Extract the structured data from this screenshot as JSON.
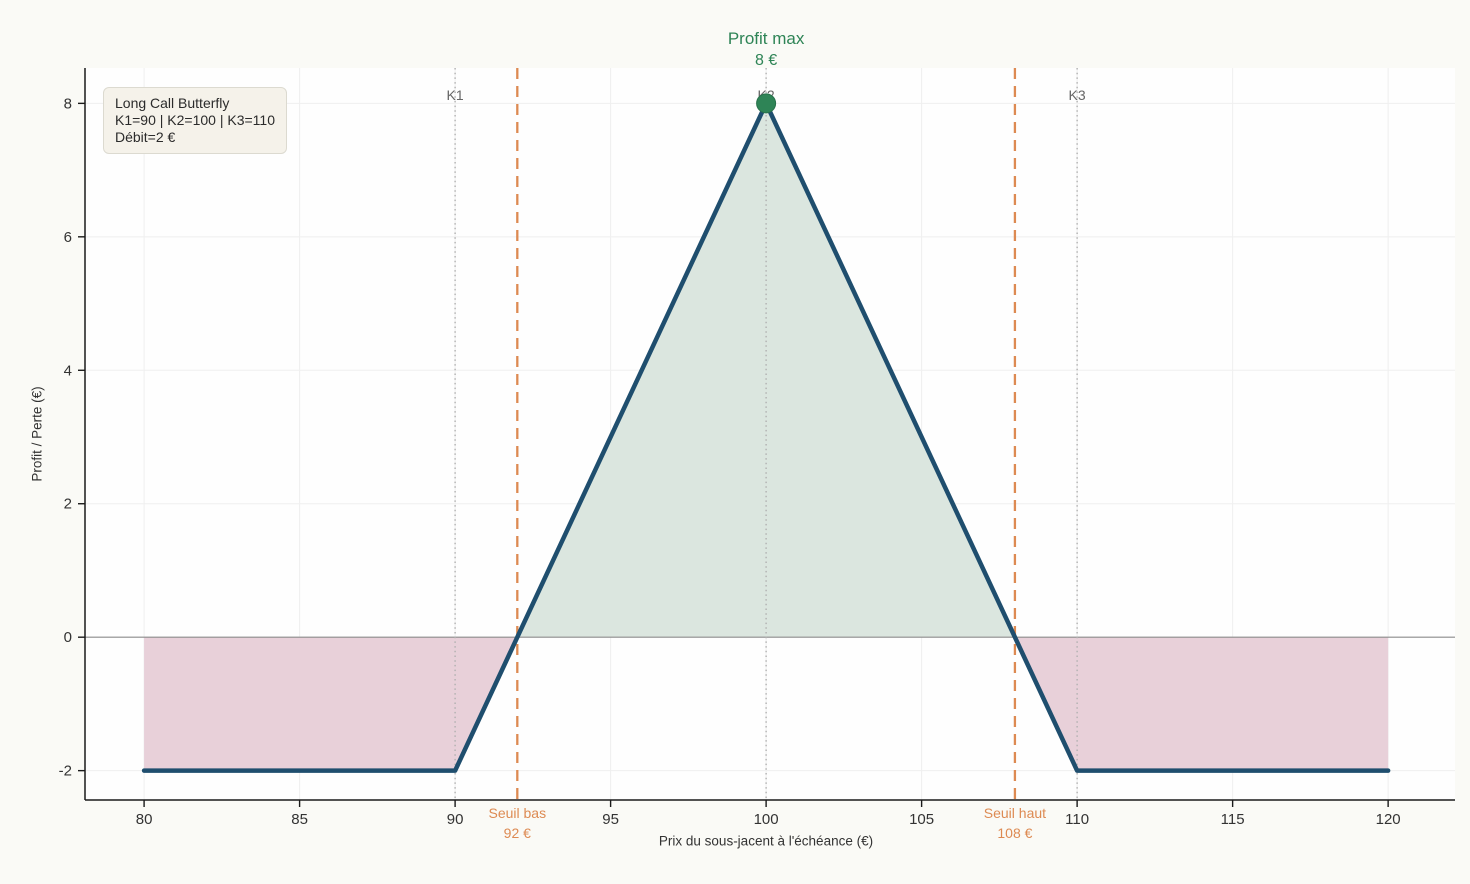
{
  "chart_data": {
    "type": "line",
    "title": "",
    "xlabel": "Prix du sous-jacent à l'échéance (€)",
    "ylabel": "Profit / Perte (€)",
    "x_ticks": [
      80,
      85,
      90,
      95,
      100,
      105,
      110,
      115,
      120
    ],
    "y_ticks": [
      -2,
      0,
      2,
      4,
      6,
      8
    ],
    "xlim": [
      78.1,
      122.15
    ],
    "ylim": [
      -2.44,
      8.53
    ],
    "grid": true,
    "series": [
      {
        "name": "Long Call Butterfly payoff",
        "x": [
          80,
          90,
          100,
          110,
          120
        ],
        "y": [
          -2,
          -2,
          8,
          -2,
          -2
        ]
      }
    ],
    "strikes": [
      {
        "label": "K1",
        "x": 90
      },
      {
        "label": "K2",
        "x": 100
      },
      {
        "label": "K3",
        "x": 110
      }
    ],
    "breakevens": [
      {
        "label": "Seuil bas",
        "value_label": "92 €",
        "x": 92
      },
      {
        "label": "Seuil haut",
        "value_label": "108 €",
        "x": 108
      }
    ],
    "max_profit": {
      "label": "Profit max",
      "value_label": "8 €",
      "x": 100,
      "y": 8
    },
    "profit_region": {
      "x_from": 92,
      "x_to": 108
    },
    "loss_regions": [
      {
        "x_from": 80,
        "x_to": 92
      },
      {
        "x_from": 108,
        "x_to": 120
      }
    ],
    "legend_box": {
      "lines": [
        "Long Call Butterfly",
        "K1=90 | K2=100 | K3=110",
        "Débit=2 €"
      ]
    },
    "colors": {
      "payoff_line": "#1f4e6e",
      "profit_fill": "#dbe6df",
      "loss_fill": "#e8d0d9",
      "breakeven_line": "#dd8a52",
      "accent_green": "#2e8456",
      "strike_line": "#b0b0b0",
      "zero_line": "#8c8c8c",
      "grid": "#efefef",
      "axis": "#1a1a1a",
      "tick_text": "#333333",
      "strike_text": "#666666"
    }
  }
}
